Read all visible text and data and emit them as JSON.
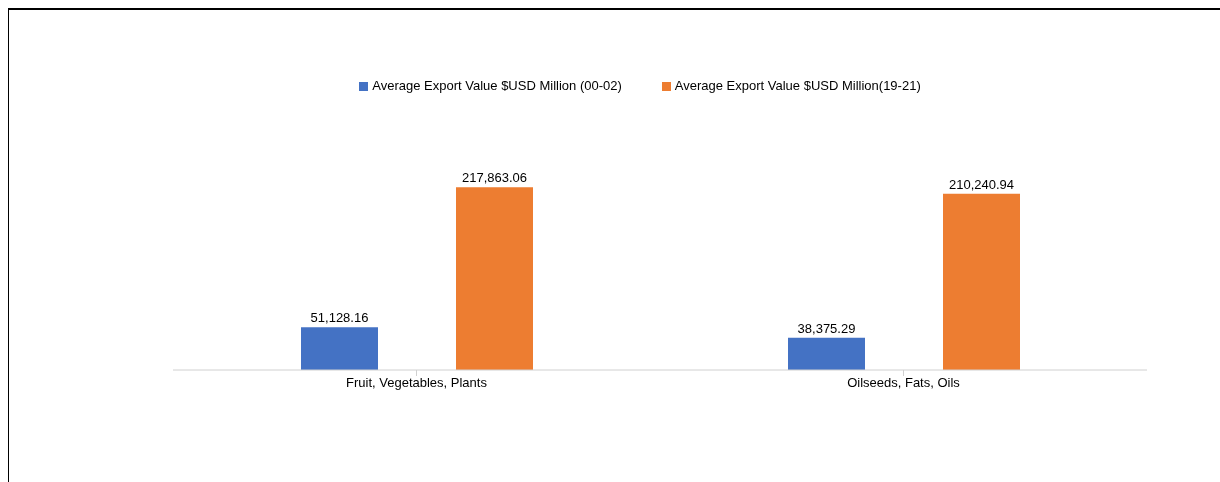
{
  "chart_data": {
    "type": "bar",
    "categories": [
      "Fruit, Vegetables, Plants",
      "Oilseeds, Fats, Oils"
    ],
    "series": [
      {
        "name": "Average Export Value $USD Million (00-02)",
        "color": "#4472c4",
        "values": [
          51128.16,
          38375.29
        ],
        "value_labels": [
          "51,128.16",
          "38,375.29"
        ]
      },
      {
        "name": "Average Export Value $USD Million(19-21)",
        "color": "#ed7d31",
        "values": [
          217863.06,
          210240.94
        ],
        "value_labels": [
          "217,863.06",
          "210,240.94"
        ]
      }
    ],
    "legend": "top",
    "grid": false
  }
}
